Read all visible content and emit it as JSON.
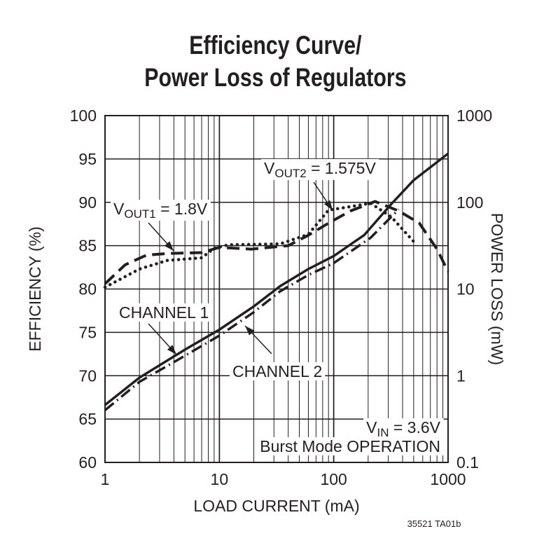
{
  "chart_data": {
    "type": "line",
    "title": [
      "Efficiency Curve/",
      "Power Loss of Regulators"
    ],
    "xlabel": "LOAD CURRENT (mA)",
    "ylabel": "EFFICIENCY (%)",
    "y2label": "POWER LOSS (mW)",
    "x_scale": "log",
    "xlim": [
      1,
      1000
    ],
    "ylim": [
      60,
      100
    ],
    "y2_scale": "log",
    "y2lim": [
      0.1,
      1000
    ],
    "grid": true,
    "x_ticks": [
      "1",
      "10",
      "100",
      "1000"
    ],
    "y_ticks": [
      "60",
      "65",
      "70",
      "75",
      "80",
      "85",
      "90",
      "95",
      "100"
    ],
    "y2_ticks": [
      "0.1",
      "1",
      "10",
      "100",
      "1000"
    ],
    "series": [
      {
        "name": "VOUT1 = 1.8V",
        "axis": "left",
        "style": "dashed",
        "x": [
          1,
          1.5,
          2.3,
          3.5,
          7,
          10,
          19,
          40,
          60,
          90,
          140,
          230,
          370,
          560,
          800,
          1000
        ],
        "y": [
          80.6,
          82.8,
          83.9,
          84.1,
          84.2,
          84.8,
          84.6,
          85.0,
          86.2,
          87.6,
          89.0,
          90.1,
          89.0,
          87.6,
          84.6,
          82.0
        ]
      },
      {
        "name": "VOUT2 = 1.575V",
        "axis": "left",
        "style": "dotted",
        "x": [
          1,
          2,
          3.5,
          7,
          9,
          12,
          34,
          60,
          90,
          140,
          210,
          320,
          530
        ],
        "y": [
          80.2,
          82.3,
          83.3,
          83.6,
          84.7,
          85.1,
          85.2,
          86.3,
          89.1,
          89.5,
          89.9,
          88.3,
          85.1
        ]
      },
      {
        "name": "CHANNEL 1",
        "axis": "right",
        "style": "solid",
        "x": [
          1,
          2,
          5,
          10,
          20,
          34,
          60,
          100,
          185,
          320,
          500,
          1000
        ],
        "y": [
          0.46,
          0.95,
          2.0,
          3.4,
          6.3,
          10.8,
          17,
          24,
          42,
          96,
          180,
          365
        ]
      },
      {
        "name": "CHANNEL 2",
        "axis": "right",
        "style": "dash-dot",
        "x": [
          1,
          2,
          5,
          10,
          20,
          34,
          60,
          100,
          210,
          370
        ],
        "y": [
          0.4,
          0.85,
          1.7,
          2.9,
          5.4,
          9.4,
          14.5,
          19.9,
          39,
          83
        ]
      }
    ],
    "annotations": {
      "vout1": {
        "v": "V",
        "sub": "OUT1",
        "rest": " = 1.8V"
      },
      "vout2": {
        "v": "V",
        "sub": "OUT2",
        "rest": " = 1.575V"
      },
      "ch1": "CHANNEL 1",
      "ch2": "CHANNEL 2",
      "vin": {
        "v": "V",
        "sub": "IN",
        "rest": " = 3.6V"
      },
      "mode": "Burst Mode OPERATION"
    },
    "footnote": "35521 TA01b"
  }
}
